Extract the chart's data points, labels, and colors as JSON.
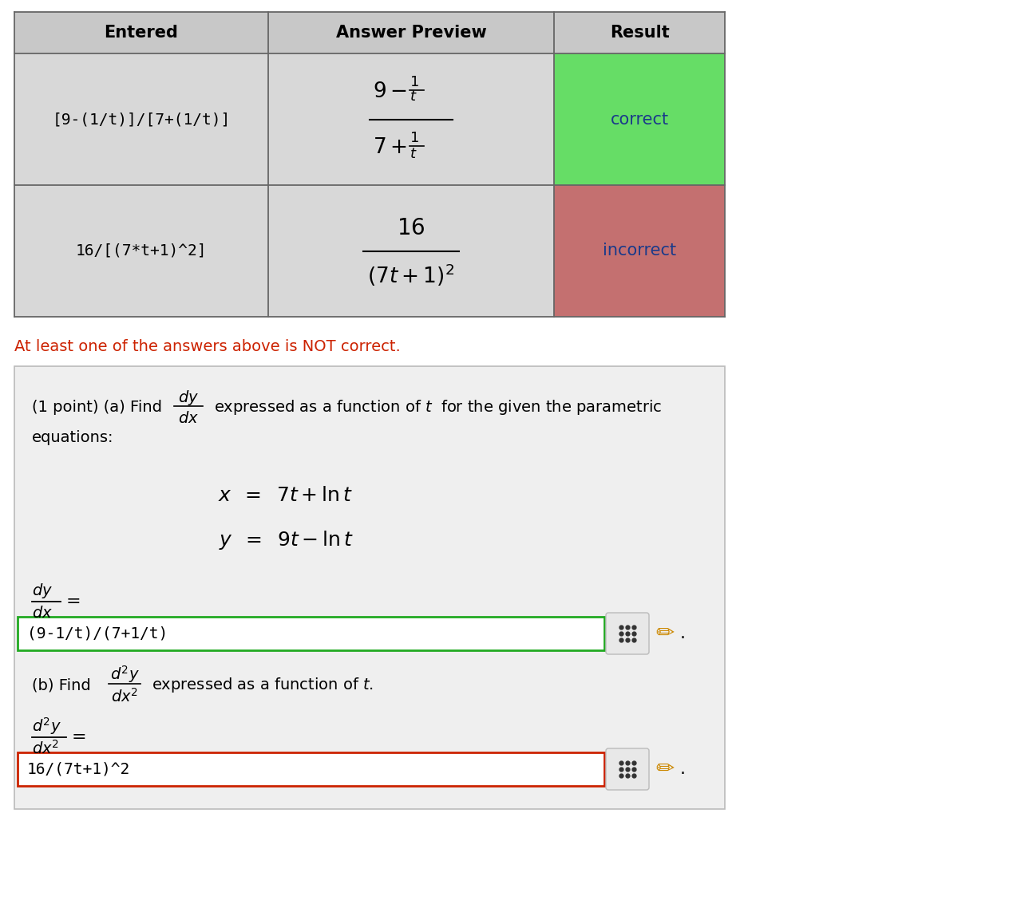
{
  "bg_color": "#ffffff",
  "table_bg": "#d8d8d8",
  "header_bg": "#c8c8c8",
  "correct_bg": "#66dd66",
  "incorrect_bg": "#c47070",
  "correct_text": "#1a3a8a",
  "incorrect_text": "#1a3a8a",
  "header_text_color": "#000000",
  "table_border_color": "#666666",
  "col1_text1": "[9-(1/t)]/[7+(1/t)]",
  "col1_text2": "16/[(7*t+1)^2]",
  "col3_text1": "correct",
  "col3_text2": "incorrect",
  "warning_text": "At least one of the answers above is NOT correct.",
  "warning_color": "#cc2200",
  "panel_bg": "#efefef",
  "panel_border": "#bbbbbb",
  "box1_border": "#22aa22",
  "box2_border": "#cc2200",
  "box1_text": "(9-1/t)/(7+1/t)",
  "box2_text": "16/(7t+1)^2",
  "input_bg": "#ffffff",
  "grid_btn_bg": "#e8e8e8",
  "grid_btn_border": "#bbbbbb"
}
